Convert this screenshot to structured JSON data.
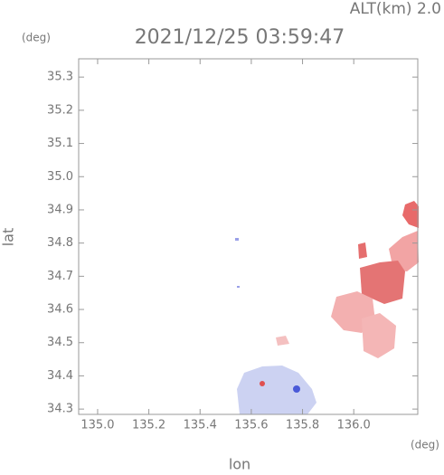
{
  "chart_data": {
    "type": "map",
    "title": "2021/12/25 03:59:47",
    "subtitle": "ALT(km) 2.0",
    "xlabel": "lon",
    "ylabel": "lat",
    "x_unit": "(deg)",
    "y_unit": "(deg)",
    "xlim": [
      134.926,
      136.25
    ],
    "ylim": [
      34.284,
      35.355
    ],
    "xticks": [
      {
        "value": 135.0,
        "label": "135.0"
      },
      135.2,
      135.4,
      135.6,
      135.8,
      {
        "value": 136.0,
        "label": "136.0"
      }
    ],
    "yticks": [
      34.3,
      34.4,
      34.5,
      34.6,
      34.7,
      34.8,
      34.9,
      {
        "value": 35.0,
        "label": "35.0"
      },
      35.1,
      35.2,
      35.3
    ]
  }
}
